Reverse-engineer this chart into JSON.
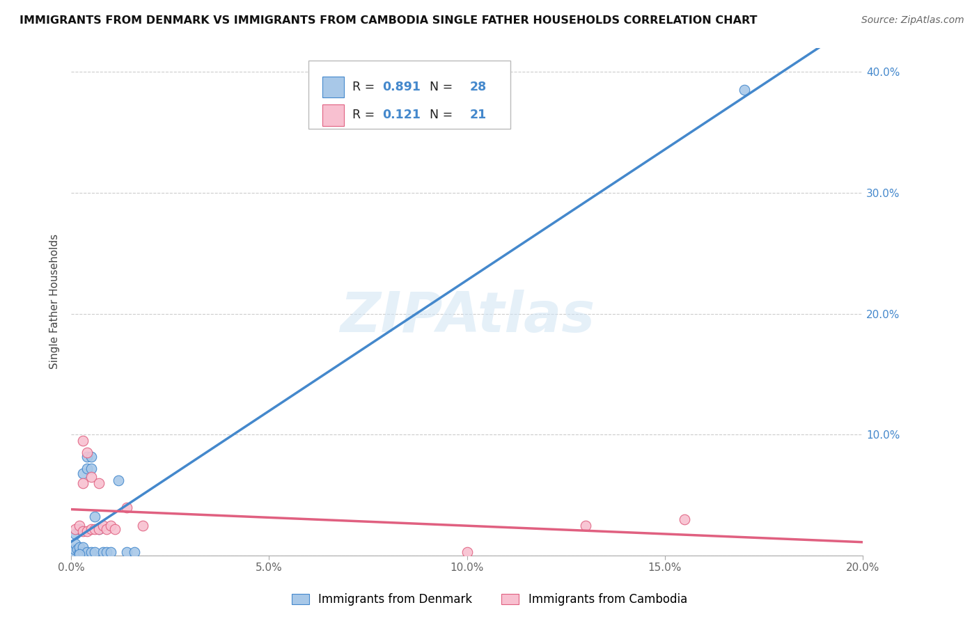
{
  "title": "IMMIGRANTS FROM DENMARK VS IMMIGRANTS FROM CAMBODIA SINGLE FATHER HOUSEHOLDS CORRELATION CHART",
  "source": "Source: ZipAtlas.com",
  "ylabel": "Single Father Households",
  "xlabel_bottom_denmark": "Immigrants from Denmark",
  "xlabel_bottom_cambodia": "Immigrants from Cambodia",
  "watermark": "ZIPAtlas",
  "denmark_r": 0.891,
  "denmark_n": 28,
  "cambodia_r": 0.121,
  "cambodia_n": 21,
  "denmark_color": "#a8c8e8",
  "denmark_line_color": "#4488cc",
  "cambodia_color": "#f8c0d0",
  "cambodia_line_color": "#e06080",
  "xlim": [
    0,
    0.2
  ],
  "ylim": [
    0,
    0.42
  ],
  "denmark_x": [
    0.0005,
    0.0008,
    0.001,
    0.001,
    0.0015,
    0.002,
    0.002,
    0.002,
    0.003,
    0.003,
    0.003,
    0.004,
    0.004,
    0.004,
    0.005,
    0.005,
    0.005,
    0.006,
    0.006,
    0.007,
    0.008,
    0.009,
    0.01,
    0.012,
    0.014,
    0.016,
    0.17,
    0.002
  ],
  "denmark_y": [
    0.003,
    0.005,
    0.01,
    0.018,
    0.005,
    0.003,
    0.007,
    0.022,
    0.003,
    0.007,
    0.068,
    0.003,
    0.072,
    0.082,
    0.003,
    0.072,
    0.082,
    0.003,
    0.032,
    0.022,
    0.003,
    0.003,
    0.003,
    0.062,
    0.003,
    0.003,
    0.385,
    0.001
  ],
  "cambodia_x": [
    0.001,
    0.002,
    0.003,
    0.003,
    0.004,
    0.004,
    0.005,
    0.005,
    0.006,
    0.007,
    0.007,
    0.008,
    0.009,
    0.01,
    0.011,
    0.014,
    0.018,
    0.1,
    0.13,
    0.155,
    0.003
  ],
  "cambodia_y": [
    0.022,
    0.025,
    0.02,
    0.06,
    0.02,
    0.085,
    0.022,
    0.065,
    0.022,
    0.022,
    0.06,
    0.025,
    0.022,
    0.025,
    0.022,
    0.04,
    0.025,
    0.003,
    0.025,
    0.03,
    0.095
  ],
  "background_color": "#ffffff",
  "grid_color": "#cccccc",
  "xticks": [
    0.0,
    0.05,
    0.1,
    0.15,
    0.2
  ],
  "yticks": [
    0.0,
    0.1,
    0.2,
    0.3,
    0.4
  ],
  "ytick_labels_right": [
    "",
    "10.0%",
    "20.0%",
    "30.0%",
    "40.0%"
  ],
  "xtick_labels": [
    "0.0%",
    "5.0%",
    "10.0%",
    "15.0%",
    "20.0%"
  ]
}
